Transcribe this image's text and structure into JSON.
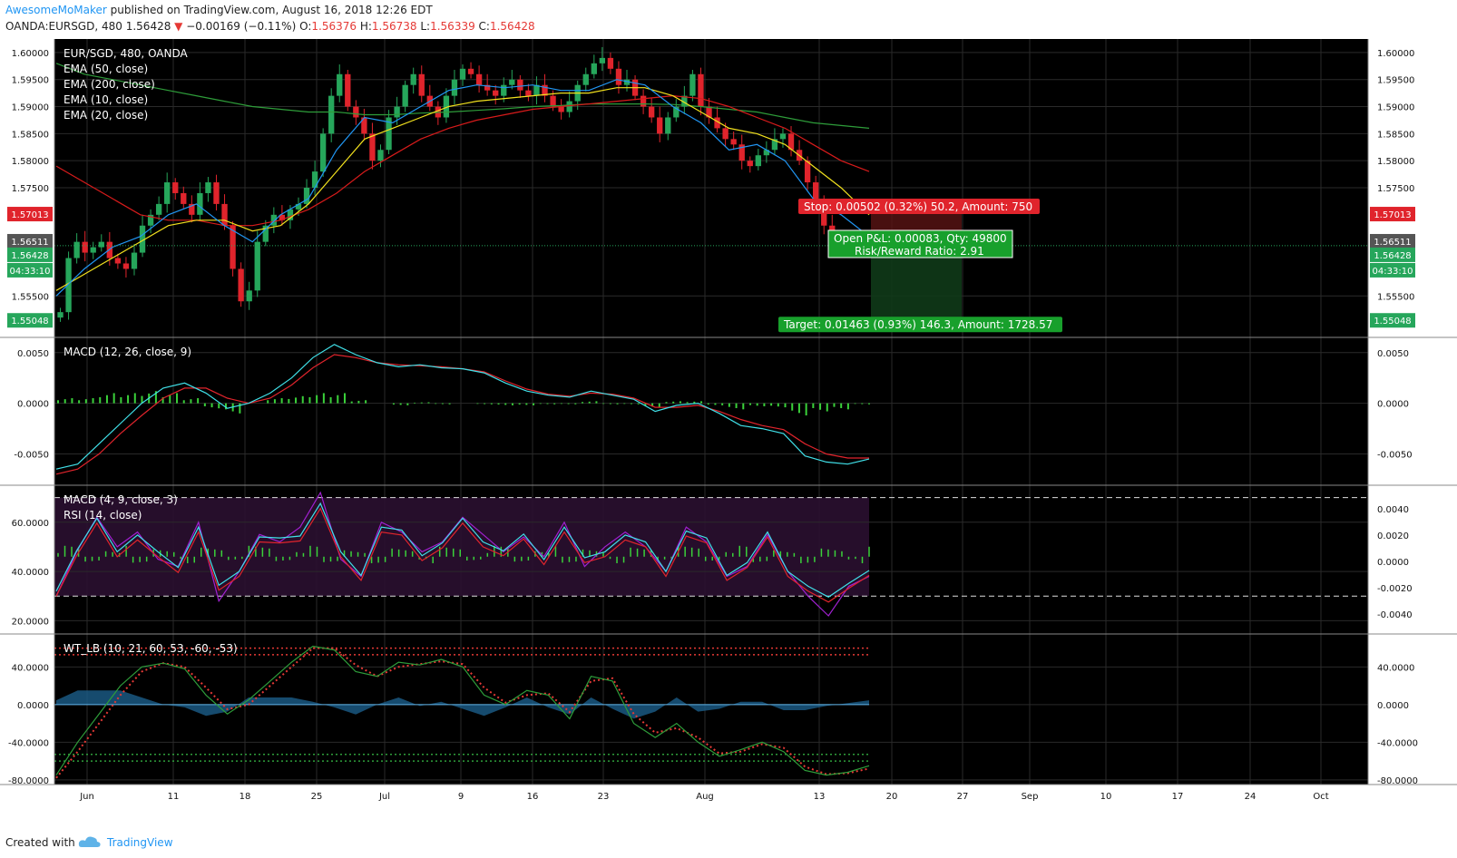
{
  "header": {
    "author": "AwesomeMoMaker",
    "published": "published on TradingView.com, August 16, 2018 12:26 EDT",
    "symbol": "OANDA:EURSGD, 480",
    "last": "1.56428",
    "arrow": "▼",
    "change": "−0.00169 (−0.11%)",
    "o_label": "O:",
    "o_value": "1.56376",
    "h_label": "H:",
    "h_value": "1.56738",
    "l_label": "L:",
    "l_value": "1.56339",
    "c_label": "C:",
    "c_value": "1.56428"
  },
  "footer": {
    "created": "Created with",
    "brand": "TradingView",
    "logo_icon": "tradingview-cloud-icon"
  },
  "colors": {
    "bg": "#000000",
    "grid": "#2a2a2a",
    "up": "#26a65b",
    "down": "#e0242c",
    "ema50": "#d81b1b",
    "ema200": "#2e9d3a",
    "ema10": "#2196f3",
    "ema20": "#f2e11e",
    "macd": "#40e0e8",
    "signal": "#e0242c",
    "hist": "#3ad13a",
    "rsi": "#a020d0",
    "wt1": "#2e9d3a",
    "wt2": "#e53935",
    "wtarea": "#1b5e8a"
  },
  "chart_data": [
    {
      "type": "candlestick",
      "title": "EUR/SGD, 480, OANDA",
      "legend": [
        "EMA (50, close)",
        "EMA (200, close)",
        "EMA (10, close)",
        "EMA (20, close)"
      ],
      "x_tick_labels": [
        "Jun",
        "11",
        "18",
        "25",
        "Jul",
        "9",
        "16",
        "23",
        "Aug",
        "13",
        "20",
        "27",
        "Sep",
        "10",
        "17",
        "24",
        "Oct"
      ],
      "y_ticks": [
        "1.60000",
        "1.59500",
        "1.59000",
        "1.58500",
        "1.58000",
        "1.57500",
        "1.55500"
      ],
      "ylim": [
        1.5475,
        1.6025
      ],
      "price_badges": [
        {
          "value": "1.57013",
          "color": "#e0242c"
        },
        {
          "value": "1.56511",
          "color": "#555555"
        },
        {
          "value": "1.56428",
          "color": "#26a65b"
        },
        {
          "value": "04:33:10",
          "color": "#26a65b"
        },
        {
          "value": "1.55048",
          "color": "#26a65b"
        }
      ],
      "position": {
        "entry": 1.56511,
        "stop": 1.57013,
        "target": 1.55048,
        "stop_label": "Stop: 0.00502 (0.32%) 50.2, Amount: 750",
        "pnl_label": "Open P&L: 0.00083, Qty: 49800",
        "rr_label": "Risk/Reward Ratio: 2.91",
        "target_label": "Target: 0.01463 (0.93%) 146.3, Amount: 1728.57"
      },
      "close_series": [
        1.552,
        1.562,
        1.565,
        1.563,
        1.564,
        1.565,
        1.562,
        1.561,
        1.56,
        1.563,
        1.568,
        1.57,
        1.572,
        1.576,
        1.574,
        1.572,
        1.57,
        1.574,
        1.576,
        1.572,
        1.568,
        1.56,
        1.554,
        1.556,
        1.565,
        1.568,
        1.57,
        1.569,
        1.571,
        1.572,
        1.575,
        1.578,
        1.585,
        1.592,
        1.596,
        1.59,
        1.588,
        1.585,
        1.58,
        1.582,
        1.588,
        1.59,
        1.594,
        1.596,
        1.592,
        1.59,
        1.588,
        1.592,
        1.595,
        1.597,
        1.596,
        1.594,
        1.593,
        1.592,
        1.594,
        1.595,
        1.593,
        1.592,
        1.594,
        1.592,
        1.59,
        1.589,
        1.591,
        1.594,
        1.596,
        1.598,
        1.599,
        1.597,
        1.594,
        1.595,
        1.592,
        1.59,
        1.588,
        1.585,
        1.588,
        1.59,
        1.592,
        1.596,
        1.59,
        1.588,
        1.586,
        1.584,
        1.583,
        1.58,
        1.579,
        1.581,
        1.582,
        1.584,
        1.585,
        1.582,
        1.58,
        1.576,
        1.572,
        1.568,
        1.566,
        1.565,
        1.564,
        1.565,
        1.5643
      ],
      "ema10": [
        1.555,
        1.56,
        1.564,
        1.566,
        1.57,
        1.572,
        1.568,
        1.565,
        1.57,
        1.573,
        1.582,
        1.588,
        1.587,
        1.59,
        1.593,
        1.594,
        1.5935,
        1.594,
        1.593,
        1.593,
        1.595,
        1.594,
        1.59,
        1.587,
        1.582,
        1.583,
        1.58,
        1.573,
        1.57,
        1.566
      ],
      "ema20": [
        1.556,
        1.559,
        1.562,
        1.565,
        1.568,
        1.569,
        1.569,
        1.567,
        1.568,
        1.572,
        1.578,
        1.584,
        1.586,
        1.588,
        1.59,
        1.591,
        1.5915,
        1.592,
        1.5925,
        1.5925,
        1.5935,
        1.5935,
        1.592,
        1.589,
        1.586,
        1.585,
        1.583,
        1.579,
        1.575,
        1.57
      ],
      "ema50": [
        1.579,
        1.576,
        1.573,
        1.57,
        1.569,
        1.569,
        1.568,
        1.568,
        1.569,
        1.571,
        1.574,
        1.578,
        1.581,
        1.584,
        1.586,
        1.5875,
        1.5885,
        1.5895,
        1.59,
        1.5905,
        1.591,
        1.5915,
        1.592,
        1.5915,
        1.59,
        1.588,
        1.586,
        1.583,
        1.58,
        1.578
      ],
      "ema200": [
        1.598,
        1.596,
        1.595,
        1.594,
        1.593,
        1.592,
        1.591,
        1.59,
        1.5895,
        1.589,
        1.589,
        1.5885,
        1.5885,
        1.5888,
        1.589,
        1.5893,
        1.5896,
        1.59,
        1.5902,
        1.5905,
        1.5905,
        1.5905,
        1.5904,
        1.59,
        1.5895,
        1.589,
        1.588,
        1.587,
        1.5865,
        1.586
      ]
    },
    {
      "type": "line",
      "title": "MACD (12, 26, close, 9)",
      "y_ticks": [
        "0.0050",
        "0.0000",
        "-0.0050"
      ],
      "ylim": [
        -0.008,
        0.0065
      ],
      "macd": [
        -0.0065,
        -0.006,
        -0.004,
        -0.002,
        0.0,
        0.0015,
        0.002,
        0.001,
        -0.0005,
        0.0,
        0.001,
        0.0025,
        0.0045,
        0.0058,
        0.0048,
        0.004,
        0.0036,
        0.0038,
        0.0035,
        0.0034,
        0.003,
        0.002,
        0.0012,
        0.0008,
        0.0006,
        0.0012,
        0.0008,
        0.0004,
        -0.0008,
        -0.0002,
        0.0,
        -0.001,
        -0.0022,
        -0.0025,
        -0.003,
        -0.0052,
        -0.0058,
        -0.006,
        -0.0055
      ],
      "signal": [
        -0.007,
        -0.0065,
        -0.005,
        -0.003,
        -0.0012,
        0.0005,
        0.0015,
        0.0015,
        0.0005,
        0.0,
        0.0005,
        0.0018,
        0.0035,
        0.0048,
        0.0045,
        0.004,
        0.0038,
        0.0037,
        0.0036,
        0.0034,
        0.0031,
        0.0022,
        0.0014,
        0.0009,
        0.0007,
        0.001,
        0.0009,
        0.0005,
        -0.0004,
        -0.0004,
        -0.0002,
        -0.0008,
        -0.0016,
        -0.0022,
        -0.0026,
        -0.004,
        -0.005,
        -0.0054,
        -0.0054
      ],
      "histogram": [
        0.0005,
        0.0005,
        0.001,
        0.001,
        0.0012,
        0.001,
        0.0005,
        -0.0005,
        -0.001,
        0.0,
        0.0005,
        0.0007,
        0.001,
        0.001,
        0.0003,
        0.0,
        -0.0002,
        0.0001,
        -0.0001,
        0.0,
        -0.0001,
        -0.0002,
        -0.0002,
        -0.0001,
        -0.0001,
        0.0002,
        -0.0001,
        -0.0001,
        -0.0004,
        0.0002,
        0.0002,
        -0.0002,
        -0.0006,
        -0.0003,
        -0.0004,
        -0.0012,
        -0.0008,
        -0.0006,
        -0.0001
      ]
    },
    {
      "type": "line",
      "title": "MACD (4, 9, close, 3)",
      "legend": [
        "MACD (4, 9, close, 3)",
        "RSI (14, close)"
      ],
      "y_ticks_left": [
        "60.0000",
        "40.0000",
        "20.0000"
      ],
      "y_ticks_right": [
        "0.0040",
        "0.0020",
        "0.0000",
        "-0.0020",
        "-0.0040"
      ],
      "ylim_rsi": [
        15,
        75
      ],
      "rsi_band": [
        30,
        70
      ],
      "rsi": [
        30,
        48,
        62,
        50,
        56,
        45,
        42,
        60,
        28,
        40,
        55,
        52,
        58,
        72,
        45,
        38,
        60,
        56,
        48,
        52,
        62,
        55,
        48,
        54,
        46,
        60,
        42,
        50,
        56,
        50,
        40,
        58,
        52,
        38,
        42,
        55,
        40,
        30,
        22,
        34,
        38
      ]
    },
    {
      "type": "line",
      "title": "WT_LB (10, 21, 60, 53, -60, -53)",
      "y_ticks": [
        "40.0000",
        "0.0000",
        "-40.0000",
        "-80.0000"
      ],
      "ylim": [
        -85,
        75
      ],
      "levels": [
        60,
        53,
        -53,
        -60
      ],
      "wt1": [
        -75,
        -40,
        -10,
        20,
        40,
        44,
        38,
        10,
        -10,
        5,
        25,
        45,
        62,
        58,
        35,
        30,
        45,
        42,
        48,
        40,
        10,
        0,
        15,
        10,
        -15,
        30,
        25,
        -20,
        -35,
        -20,
        -40,
        -55,
        -48,
        -40,
        -50,
        -70,
        -75,
        -72,
        -65
      ],
      "wt2": [
        -78,
        -50,
        -20,
        10,
        35,
        44,
        40,
        18,
        -5,
        0,
        20,
        40,
        60,
        60,
        42,
        30,
        40,
        43,
        46,
        43,
        18,
        2,
        10,
        12,
        -8,
        25,
        28,
        -10,
        -30,
        -25,
        -35,
        -52,
        -50,
        -42,
        -46,
        -66,
        -74,
        -73,
        -68
      ]
    }
  ]
}
